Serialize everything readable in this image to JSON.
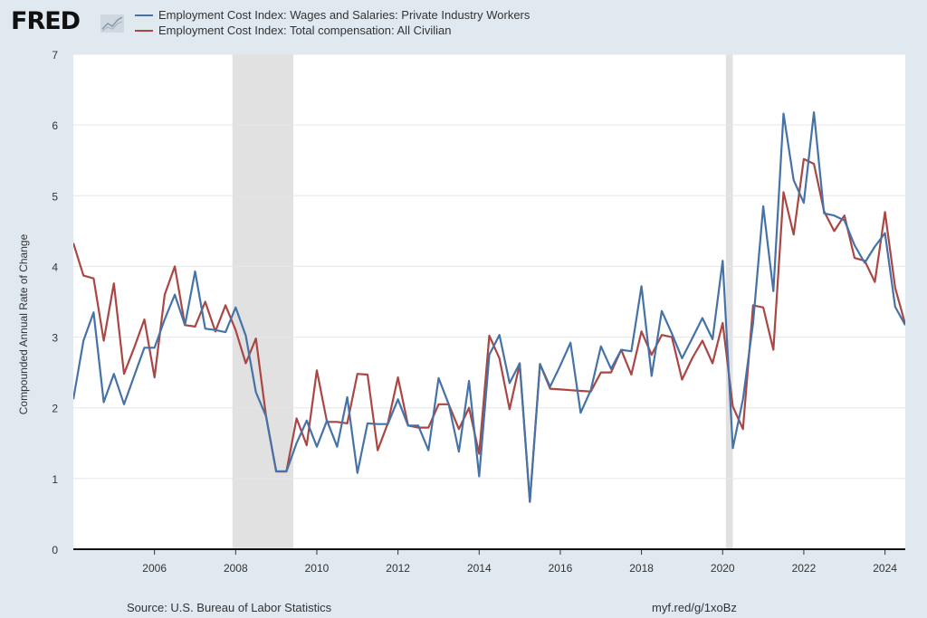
{
  "logo": "FRED",
  "footer": {
    "source": "Source: U.S. Bureau of Labor Statistics",
    "link": "myf.red/g/1xoBz"
  },
  "chart_data": {
    "type": "line",
    "title": "",
    "xlabel": "",
    "ylabel": "Compounded Annual Rate of Change",
    "xlim": [
      2004.0,
      2024.5
    ],
    "ylim": [
      0,
      7
    ],
    "yticks": [
      0,
      1,
      2,
      3,
      4,
      5,
      6,
      7
    ],
    "xticks": [
      2006,
      2008,
      2010,
      2012,
      2014,
      2016,
      2018,
      2020,
      2022,
      2024
    ],
    "grid": true,
    "legend_position": "top",
    "recessions": [
      [
        2007.92,
        2009.42
      ],
      [
        2020.08,
        2020.25
      ]
    ],
    "x_start": 2004.0,
    "x_step": 0.25,
    "series": [
      {
        "name": "Employment Cost Index: Wages and Salaries: Private Industry Workers",
        "color": "#4572a7",
        "values": [
          2.12,
          2.95,
          3.35,
          2.08,
          2.48,
          2.05,
          2.45,
          2.85,
          2.85,
          3.25,
          3.6,
          3.17,
          3.93,
          3.12,
          3.1,
          3.07,
          3.42,
          3.02,
          2.22,
          1.88,
          1.1,
          1.1,
          1.5,
          1.82,
          1.45,
          1.82,
          1.45,
          2.15,
          1.08,
          1.78,
          1.77,
          1.77,
          2.12,
          1.75,
          1.75,
          1.4,
          2.42,
          2.05,
          1.38,
          2.38,
          1.03,
          2.75,
          3.03,
          2.35,
          2.63,
          0.67,
          2.62,
          2.3,
          2.6,
          2.92,
          1.93,
          2.25,
          2.87,
          2.55,
          2.82,
          2.8,
          3.72,
          2.45,
          3.37,
          3.05,
          2.7,
          2.98,
          3.27,
          2.97,
          4.08,
          1.43,
          2.12,
          3.2,
          4.85,
          3.65,
          6.16,
          5.22,
          4.9,
          6.18,
          4.75,
          4.72,
          4.65,
          4.3,
          4.05,
          4.28,
          4.47,
          3.43,
          3.17
        ]
      },
      {
        "name": "Employment Cost Index: Total compensation: All Civilian",
        "color": "#aa4643",
        "values": [
          4.33,
          3.87,
          3.83,
          2.95,
          3.76,
          2.48,
          2.85,
          3.25,
          2.43,
          3.6,
          4.0,
          3.17,
          3.15,
          3.5,
          3.08,
          3.45,
          3.1,
          2.63,
          2.98,
          1.88,
          1.1,
          1.1,
          1.85,
          1.47,
          2.53,
          1.8,
          1.8,
          1.78,
          2.48,
          2.47,
          1.4,
          1.78,
          2.43,
          1.75,
          1.72,
          1.72,
          2.05,
          2.05,
          1.7,
          2.0,
          1.35,
          3.02,
          2.7,
          1.98,
          2.62,
          0.67,
          2.62,
          2.27,
          2.26,
          2.25,
          2.24,
          2.23,
          2.5,
          2.5,
          2.82,
          2.47,
          3.08,
          2.75,
          3.03,
          3.0,
          2.4,
          2.7,
          2.95,
          2.63,
          3.2,
          2.02,
          1.7,
          3.45,
          3.42,
          2.82,
          5.05,
          4.45,
          5.52,
          5.45,
          4.78,
          4.5,
          4.72,
          4.12,
          4.08,
          3.78,
          4.77,
          3.7,
          3.18
        ]
      }
    ]
  }
}
